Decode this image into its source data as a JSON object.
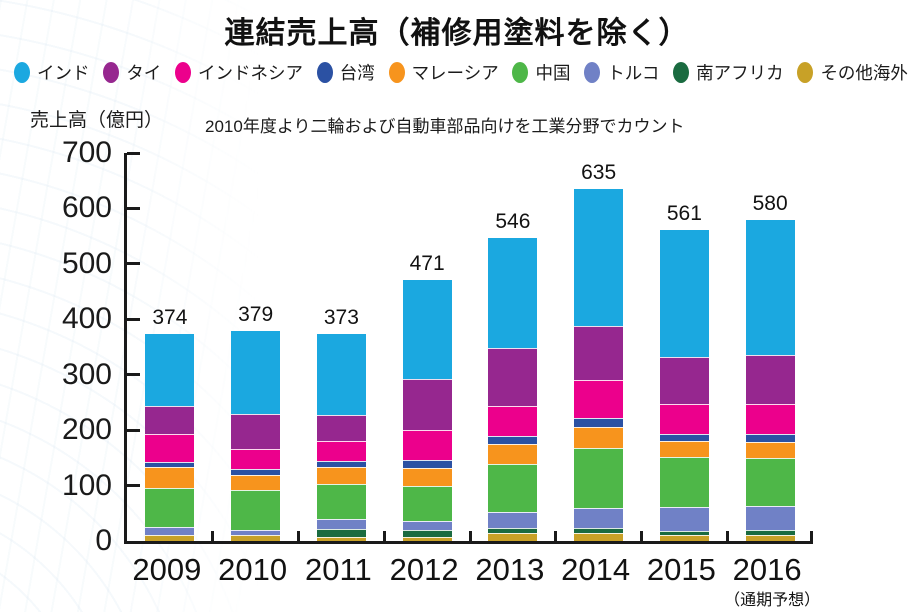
{
  "header": {
    "title": "連結売上高（補修用塗料を除く）"
  },
  "chart_data": {
    "type": "bar",
    "stacked": true,
    "title": "連結売上高（補修用塗料を除く）",
    "note": "2010年度より二輪および自動車部品向けを工業分野でカウント",
    "y_axis_title": "売上高（億円）",
    "ylim": [
      0,
      700
    ],
    "yticks": [
      0,
      100,
      200,
      300,
      400,
      500,
      600,
      700
    ],
    "grid": false,
    "legend_position": "top",
    "categories": [
      "2009",
      "2010",
      "2011",
      "2012",
      "2013",
      "2014",
      "2015",
      "2016"
    ],
    "category_note": {
      "category": "2016",
      "label": "（通期予想）"
    },
    "totals": [
      374,
      379,
      373,
      471,
      546,
      635,
      561,
      580
    ],
    "series": [
      {
        "name": "インド",
        "key": "india",
        "color": "#1BA8E0",
        "values": [
          131,
          150,
          146,
          178,
          197,
          247,
          228,
          244
        ]
      },
      {
        "name": "タイ",
        "key": "thailand",
        "color": "#96278F",
        "values": [
          50,
          63,
          46,
          93,
          106,
          98,
          85,
          89
        ]
      },
      {
        "name": "インドネシア",
        "key": "indonesia",
        "color": "#EC008C",
        "values": [
          50,
          36,
          37,
          54,
          53,
          68,
          54,
          54
        ]
      },
      {
        "name": "台湾",
        "key": "taiwan",
        "color": "#2B51A3",
        "values": [
          9,
          10,
          11,
          14,
          14,
          17,
          14,
          15
        ]
      },
      {
        "name": "マレーシア",
        "key": "malaysia",
        "color": "#F7941D",
        "values": [
          38,
          28,
          30,
          33,
          37,
          38,
          29,
          28
        ]
      },
      {
        "name": "中国",
        "key": "china",
        "color": "#4EB748",
        "values": [
          71,
          72,
          64,
          63,
          86,
          107,
          90,
          86
        ]
      },
      {
        "name": "トルコ",
        "key": "turkey",
        "color": "#7081C6",
        "values": [
          15,
          10,
          17,
          16,
          29,
          37,
          43,
          45
        ]
      },
      {
        "name": "南アフリカ",
        "key": "south-africa",
        "color": "#1A6B40",
        "values": [
          0,
          0,
          14,
          12,
          10,
          8,
          8,
          9
        ]
      },
      {
        "name": "その他海外",
        "key": "other-overseas",
        "color": "#C8A127",
        "values": [
          10,
          10,
          8,
          8,
          14,
          15,
          10,
          10
        ]
      }
    ],
    "stack_order": "legend order reversed (インド on top, その他海外 at bottom)"
  }
}
